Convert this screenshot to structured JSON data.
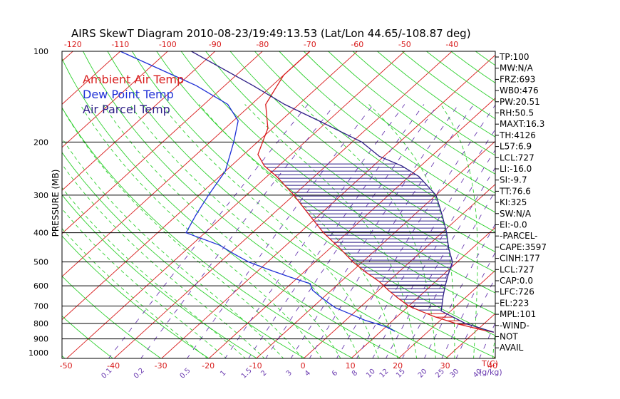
{
  "title": "AIRS SkewT Diagram 2010-08-23/19:49:13.53 (Lat/Lon 44.65/-108.87 deg)",
  "legend": [
    {
      "label": "Ambient Air Temp",
      "color": "#d81c1c"
    },
    {
      "label": "Dew Point Temp",
      "color": "#1e2fd6"
    },
    {
      "label": "Air Parcel Temp",
      "color": "#2e1f86"
    }
  ],
  "colors": {
    "frame": "#000000",
    "isotherm": "#d81c1c",
    "dry_adiabat": "#2fd02f",
    "moist_adiabat": "#2fd02f",
    "mixing_ratio": "#6a3ab0",
    "cape_hatch": "#2e1f86",
    "cin_hatch": "#d81c1c"
  },
  "axis": {
    "y_label": "PRESSURE (MB)",
    "pressure_ticks": [
      "100",
      "200",
      "300",
      "400",
      "500",
      "600",
      "700",
      "800",
      "900",
      "1000"
    ],
    "top_temp_ticks": [
      "-120",
      "-110",
      "-100",
      "-90",
      "-80",
      "-70",
      "-60",
      "-50",
      "-40"
    ],
    "bottom_temp_ticks": [
      "-50",
      "-40",
      "-30",
      "-20",
      "-10",
      "0",
      "10",
      "20",
      "30",
      "40"
    ],
    "bottom_unit": "T(C)",
    "mixing_ratio_ticks": [
      "0.1",
      "0.2",
      "0.5",
      "1",
      "1.5",
      "2",
      "3",
      "4",
      "6",
      "8",
      "10",
      "12",
      "15",
      "20",
      "25",
      "30",
      "40"
    ],
    "mixing_ratio_unit": "(g/kg)"
  },
  "stats": [
    "TP:100",
    "MW:N/A",
    "FRZ:693",
    "WB0:476",
    "PW:20.51",
    "RH:50.5",
    "MAXT:16.3",
    "TH:4126",
    "L57:6.9",
    "LCL:727",
    "LI:-16.0",
    "SI:-9.7",
    "TT:76.6",
    "KI:325",
    "SW:N/A",
    "EI:-0.0",
    "-PARCEL-",
    "CAPE:3597",
    "CINH:177",
    "LCL:727",
    "CAP:0.0",
    "LFC:726",
    "EL:223",
    "MPL:101",
    "-WIND-",
    "NOT",
    "AVAIL"
  ],
  "chart_data": {
    "type": "line",
    "title": "AIRS SkewT Diagram 2010-08-23/19:49:13.53 (Lat/Lon 44.65/-108.87 deg)",
    "xlabel": "T(C)",
    "ylabel": "PRESSURE (MB)",
    "y_scale": "log",
    "ylim": [
      1050,
      100
    ],
    "bottom_xlim": [
      -52,
      40
    ],
    "series": [
      {
        "name": "Ambient Air Temp",
        "pressure": [
          855,
          840,
          800,
          760,
          730,
          700,
          660,
          620,
          580,
          540,
          500,
          450,
          400,
          350,
          300,
          260,
          240,
          220,
          180,
          150,
          120,
          100
        ],
        "temperature": [
          34,
          31,
          24,
          18,
          14,
          10,
          6,
          2,
          -2,
          -7,
          -12,
          -18,
          -25,
          -32,
          -40,
          -48,
          -53,
          -57,
          -61,
          -67,
          -70,
          -70
        ]
      },
      {
        "name": "Dew Point Temp",
        "pressure": [
          850,
          820,
          780,
          740,
          710,
          680,
          650,
          620,
          590,
          560,
          530,
          500,
          470,
          440,
          400,
          350,
          300,
          250,
          200,
          170,
          150,
          130,
          100
        ],
        "temperature": [
          13,
          10,
          4,
          -1,
          -5,
          -8,
          -11,
          -14,
          -16,
          -22,
          -28,
          -34,
          -39,
          -44,
          -54,
          -56,
          -58,
          -60,
          -65,
          -69,
          -75,
          -86,
          -110
        ]
      },
      {
        "name": "Air Parcel Temp",
        "pressure": [
          855,
          800,
          727,
          700,
          650,
          600,
          550,
          500,
          450,
          400,
          350,
          300,
          260,
          240,
          223,
          200,
          170,
          150,
          130,
          100
        ],
        "temperature": [
          34,
          26,
          18,
          17,
          15,
          13,
          11,
          9,
          5,
          1,
          -4,
          -10,
          -18,
          -24,
          -31,
          -38,
          -52,
          -63,
          -74,
          -95
        ]
      }
    ]
  }
}
